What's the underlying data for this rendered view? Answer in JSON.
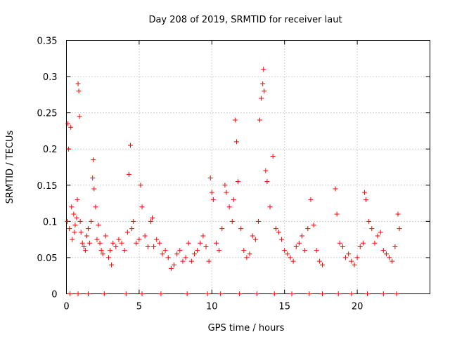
{
  "chart_data": {
    "type": "scatter",
    "title": "Day 208 of 2019, SRMTID for receiver laut",
    "xlabel": "GPS time / hours",
    "ylabel": "SRMTID / TECUs",
    "xlim": [
      0,
      25
    ],
    "ylim": [
      0,
      0.35
    ],
    "x_ticks": [
      0,
      5,
      10,
      15,
      20
    ],
    "x_tick_labels": [
      "0",
      "5",
      "10",
      "15",
      "20"
    ],
    "y_ticks": [
      0,
      0.05,
      0.1,
      0.15,
      0.2,
      0.25,
      0.3,
      0.35
    ],
    "y_tick_labels": [
      "0",
      "0.05",
      "0.1",
      "0.15",
      "0.2",
      "0.25",
      "0.3",
      "0.35"
    ],
    "grid": true,
    "marker": "plus",
    "series": [
      {
        "name": "SRMTID",
        "color": "#ff0000",
        "points": [
          [
            0.05,
            0.1
          ],
          [
            0.1,
            0.235
          ],
          [
            0.15,
            0.2
          ],
          [
            0.2,
            0.09
          ],
          [
            0.3,
            0.23
          ],
          [
            0.35,
            0.12
          ],
          [
            0.4,
            0.075
          ],
          [
            0.5,
            0.11
          ],
          [
            0.55,
            0.085
          ],
          [
            0.6,
            0.095
          ],
          [
            0.7,
            0.105
          ],
          [
            0.75,
            0.13
          ],
          [
            0.8,
            0.29
          ],
          [
            0.85,
            0.28
          ],
          [
            0.9,
            0.245
          ],
          [
            0.95,
            0.1
          ],
          [
            1.0,
            0.085
          ],
          [
            1.1,
            0.07
          ],
          [
            1.2,
            0.065
          ],
          [
            1.3,
            0.06
          ],
          [
            1.4,
            0.08
          ],
          [
            1.5,
            0.09
          ],
          [
            1.6,
            0.07
          ],
          [
            1.7,
            0.1
          ],
          [
            1.8,
            0.16
          ],
          [
            1.85,
            0.185
          ],
          [
            1.9,
            0.145
          ],
          [
            2.0,
            0.12
          ],
          [
            2.1,
            0.075
          ],
          [
            2.2,
            0.095
          ],
          [
            2.3,
            0.07
          ],
          [
            2.4,
            0.06
          ],
          [
            2.5,
            0.055
          ],
          [
            2.7,
            0.08
          ],
          [
            2.9,
            0.05
          ],
          [
            3.0,
            0.06
          ],
          [
            3.1,
            0.04
          ],
          [
            3.2,
            0.07
          ],
          [
            3.4,
            0.065
          ],
          [
            3.6,
            0.075
          ],
          [
            3.8,
            0.07
          ],
          [
            4.0,
            0.06
          ],
          [
            4.2,
            0.085
          ],
          [
            4.3,
            0.165
          ],
          [
            4.4,
            0.205
          ],
          [
            4.5,
            0.09
          ],
          [
            4.6,
            0.1
          ],
          [
            4.8,
            0.07
          ],
          [
            5.0,
            0.075
          ],
          [
            5.1,
            0.15
          ],
          [
            5.2,
            0.12
          ],
          [
            5.4,
            0.08
          ],
          [
            5.6,
            0.065
          ],
          [
            5.8,
            0.1
          ],
          [
            5.9,
            0.105
          ],
          [
            6.0,
            0.065
          ],
          [
            6.2,
            0.075
          ],
          [
            6.4,
            0.07
          ],
          [
            6.6,
            0.055
          ],
          [
            6.8,
            0.06
          ],
          [
            7.0,
            0.05
          ],
          [
            7.2,
            0.035
          ],
          [
            7.4,
            0.04
          ],
          [
            7.6,
            0.055
          ],
          [
            7.8,
            0.06
          ],
          [
            8.0,
            0.045
          ],
          [
            8.2,
            0.05
          ],
          [
            8.4,
            0.07
          ],
          [
            8.6,
            0.045
          ],
          [
            8.8,
            0.055
          ],
          [
            9.0,
            0.06
          ],
          [
            9.2,
            0.07
          ],
          [
            9.4,
            0.08
          ],
          [
            9.6,
            0.065
          ],
          [
            9.8,
            0.045
          ],
          [
            9.9,
            0.16
          ],
          [
            10.0,
            0.14
          ],
          [
            10.1,
            0.13
          ],
          [
            10.3,
            0.07
          ],
          [
            10.5,
            0.06
          ],
          [
            10.7,
            0.09
          ],
          [
            10.9,
            0.15
          ],
          [
            11.0,
            0.14
          ],
          [
            11.2,
            0.12
          ],
          [
            11.4,
            0.1
          ],
          [
            11.5,
            0.13
          ],
          [
            11.6,
            0.24
          ],
          [
            11.7,
            0.21
          ],
          [
            11.8,
            0.155
          ],
          [
            12.0,
            0.09
          ],
          [
            12.2,
            0.06
          ],
          [
            12.4,
            0.05
          ],
          [
            12.6,
            0.055
          ],
          [
            12.8,
            0.08
          ],
          [
            13.0,
            0.075
          ],
          [
            13.2,
            0.1
          ],
          [
            13.3,
            0.24
          ],
          [
            13.4,
            0.27
          ],
          [
            13.5,
            0.29
          ],
          [
            13.55,
            0.31
          ],
          [
            13.6,
            0.28
          ],
          [
            13.7,
            0.17
          ],
          [
            13.8,
            0.155
          ],
          [
            14.0,
            0.12
          ],
          [
            14.2,
            0.19
          ],
          [
            14.4,
            0.09
          ],
          [
            14.6,
            0.085
          ],
          [
            14.8,
            0.075
          ],
          [
            15.0,
            0.06
          ],
          [
            15.2,
            0.055
          ],
          [
            15.4,
            0.05
          ],
          [
            15.6,
            0.045
          ],
          [
            15.8,
            0.065
          ],
          [
            16.0,
            0.07
          ],
          [
            16.2,
            0.08
          ],
          [
            16.4,
            0.06
          ],
          [
            16.6,
            0.09
          ],
          [
            16.8,
            0.13
          ],
          [
            17.0,
            0.095
          ],
          [
            17.2,
            0.06
          ],
          [
            17.4,
            0.045
          ],
          [
            17.6,
            0.04
          ],
          [
            18.5,
            0.145
          ],
          [
            18.6,
            0.11
          ],
          [
            18.8,
            0.07
          ],
          [
            19.0,
            0.065
          ],
          [
            19.2,
            0.05
          ],
          [
            19.4,
            0.055
          ],
          [
            19.6,
            0.045
          ],
          [
            19.8,
            0.04
          ],
          [
            20.0,
            0.05
          ],
          [
            20.2,
            0.065
          ],
          [
            20.4,
            0.07
          ],
          [
            20.5,
            0.14
          ],
          [
            20.6,
            0.13
          ],
          [
            20.8,
            0.1
          ],
          [
            21.0,
            0.09
          ],
          [
            21.2,
            0.07
          ],
          [
            21.4,
            0.08
          ],
          [
            21.6,
            0.085
          ],
          [
            21.8,
            0.06
          ],
          [
            22.0,
            0.055
          ],
          [
            22.2,
            0.05
          ],
          [
            22.4,
            0.045
          ],
          [
            22.6,
            0.065
          ],
          [
            22.8,
            0.11
          ],
          [
            22.9,
            0.09
          ],
          [
            0.25,
            0.0
          ],
          [
            0.8,
            0.0
          ],
          [
            1.5,
            0.0
          ],
          [
            2.6,
            0.0
          ],
          [
            4.1,
            0.0
          ],
          [
            5.2,
            0.0
          ],
          [
            6.5,
            0.0
          ],
          [
            8.3,
            0.0
          ],
          [
            9.7,
            0.0
          ],
          [
            10.6,
            0.0
          ],
          [
            11.9,
            0.0
          ],
          [
            13.1,
            0.0
          ],
          [
            14.3,
            0.0
          ],
          [
            15.5,
            0.0
          ],
          [
            16.7,
            0.0
          ],
          [
            17.6,
            0.0
          ],
          [
            18.7,
            0.0
          ],
          [
            19.6,
            0.0
          ],
          [
            20.7,
            0.0
          ],
          [
            21.8,
            0.0
          ],
          [
            22.7,
            0.0
          ]
        ]
      }
    ]
  }
}
